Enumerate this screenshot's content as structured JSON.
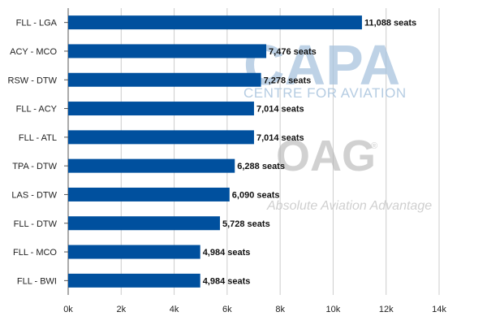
{
  "chart_data": {
    "type": "bar",
    "orientation": "horizontal",
    "title": "",
    "xlabel": "",
    "ylabel": "",
    "categories": [
      "FLL - LGA",
      "ACY - MCO",
      "RSW - DTW",
      "FLL - ACY",
      "FLL - ATL",
      "TPA - DTW",
      "LAS - DTW",
      "FLL - DTW",
      "FLL - MCO",
      "FLL - BWI"
    ],
    "values": [
      11088,
      7476,
      7278,
      7014,
      7014,
      6288,
      6090,
      5728,
      4984,
      4984
    ],
    "data_labels": [
      "11,088 seats",
      "7,476 seats",
      "7,278 seats",
      "7,014 seats",
      "7,014 seats",
      "6,288 seats",
      "6,090 seats",
      "5,728 seats",
      "4,984 seats",
      "4,984 seats"
    ],
    "xlim": [
      0,
      14000
    ],
    "x_ticks": [
      0,
      2000,
      4000,
      6000,
      8000,
      10000,
      12000,
      14000
    ],
    "x_tick_labels": [
      "0k",
      "2k",
      "4k",
      "6k",
      "8k",
      "10k",
      "12k",
      "14k"
    ],
    "grid": "vertical",
    "legend": "none",
    "bar_color": "#00509e",
    "grid_color": "#cccccc"
  },
  "watermarks": {
    "capa": "CAPA",
    "capa_sub": "CENTRE FOR AVIATION",
    "oag": "OAG",
    "oag_sub": "Absolute Aviation Advantage",
    "oag_mark": "®"
  }
}
